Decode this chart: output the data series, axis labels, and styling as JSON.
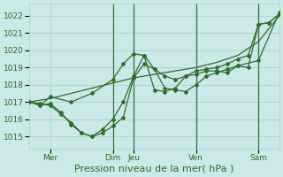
{
  "bg_color": "#cce8e8",
  "grid_color": "#a8cfc0",
  "line_color": "#2d6e2d",
  "tick_label_color": "#2d6e2d",
  "xlabel": "Pression niveau de la mer( hPa )",
  "xlabel_fontsize": 8,
  "tick_fontsize": 6.5,
  "ylim": [
    1014.3,
    1022.7
  ],
  "yticks": [
    1015,
    1016,
    1017,
    1018,
    1019,
    1020,
    1021,
    1022
  ],
  "xlim": [
    0,
    144
  ],
  "xtick_positions": [
    12,
    48,
    60,
    96,
    132
  ],
  "xtick_labels": [
    "Mer",
    "Dim",
    "Jeu",
    "Ven",
    "Sam"
  ],
  "vlines": [
    48,
    60,
    96,
    132
  ],
  "series1_x": [
    0,
    12,
    24,
    36,
    48,
    60,
    72,
    84,
    96,
    108,
    120,
    132,
    144
  ],
  "series1_y": [
    1017.0,
    1017.2,
    1017.5,
    1017.8,
    1018.1,
    1018.4,
    1018.6,
    1018.8,
    1019.0,
    1019.3,
    1019.7,
    1020.5,
    1022.0
  ],
  "series2_x": [
    0,
    6,
    12,
    24,
    36,
    48,
    54,
    60,
    66,
    72,
    78,
    84,
    90,
    96,
    102,
    108,
    114,
    120,
    126,
    132,
    138,
    144
  ],
  "series2_y": [
    1017.0,
    1016.8,
    1017.3,
    1017.0,
    1017.5,
    1018.3,
    1019.2,
    1019.8,
    1019.7,
    1018.9,
    1018.5,
    1018.3,
    1018.5,
    1018.8,
    1018.9,
    1019.0,
    1019.2,
    1019.5,
    1019.7,
    1021.5,
    1021.6,
    1022.1
  ],
  "series3_x": [
    0,
    6,
    12,
    18,
    24,
    30,
    36,
    42,
    48,
    54,
    60,
    66,
    72,
    78,
    84,
    90,
    96,
    102,
    108,
    114,
    120,
    126,
    132,
    138,
    144
  ],
  "series3_y": [
    1017.0,
    1016.8,
    1016.9,
    1016.4,
    1015.7,
    1015.2,
    1015.0,
    1015.2,
    1015.6,
    1016.1,
    1018.4,
    1019.2,
    1018.9,
    1017.8,
    1017.7,
    1017.6,
    1018.0,
    1018.5,
    1018.7,
    1018.9,
    1019.1,
    1019.0,
    1021.5,
    1021.6,
    1022.1
  ],
  "series4_x": [
    0,
    6,
    12,
    18,
    24,
    30,
    36,
    42,
    48,
    54,
    60,
    66,
    72,
    78,
    84,
    90,
    96,
    102,
    108,
    114,
    120,
    132,
    144
  ],
  "series4_y": [
    1017.0,
    1016.9,
    1016.8,
    1016.3,
    1015.8,
    1015.2,
    1015.0,
    1015.4,
    1016.0,
    1017.0,
    1018.5,
    1019.7,
    1017.7,
    1017.6,
    1017.8,
    1018.5,
    1018.6,
    1018.8,
    1018.8,
    1018.7,
    1019.1,
    1019.4,
    1022.2
  ]
}
